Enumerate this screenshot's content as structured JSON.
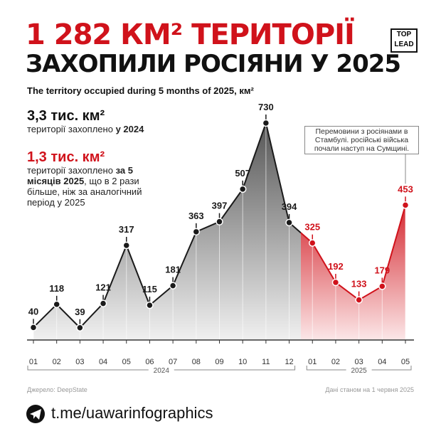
{
  "chart_data": {
    "type": "area",
    "title": "1 282 КМ² ТЕРИТОРІЇ",
    "subtitle_title": "ЗАХОПИЛИ РОСІЯНИ У 2025",
    "subtitle": "The territory occupied during 5 months of 2025, км²",
    "categories": [
      "01",
      "02",
      "03",
      "04",
      "05",
      "06",
      "07",
      "08",
      "09",
      "10",
      "11",
      "12",
      "01",
      "02",
      "03",
      "04",
      "05"
    ],
    "series": [
      {
        "name": "2024",
        "color": "#1a1a1a",
        "values": [
          40,
          118,
          39,
          121,
          317,
          115,
          181,
          363,
          397,
          507,
          730,
          394,
          null,
          null,
          null,
          null,
          null
        ]
      },
      {
        "name": "2025",
        "color": "#d0121b",
        "values": [
          null,
          null,
          null,
          null,
          null,
          null,
          null,
          null,
          null,
          null,
          null,
          null,
          325,
          192,
          133,
          179,
          453
        ]
      }
    ],
    "annotation": "Перемовини з росіянами в Стамбулі. російські війська почали наступ на Сумщині.",
    "source": "Джерело: DeepState",
    "date_note": "Дані станом на 1 червня 2025"
  },
  "logo": [
    "TOP",
    "LEAD"
  ],
  "stats": [
    {
      "value": "3,3 тис. км²",
      "text": "території захоплено",
      "emphasis": "у 2024"
    },
    {
      "value": "1,3 тис. км²",
      "text": "території захоплено",
      "emphasis": "за 5 місяців 2025",
      "rest": ", що в 2 рази більше, ніж за аналогічний період у 2025"
    }
  ],
  "link": "t.me/uawarinfographics"
}
